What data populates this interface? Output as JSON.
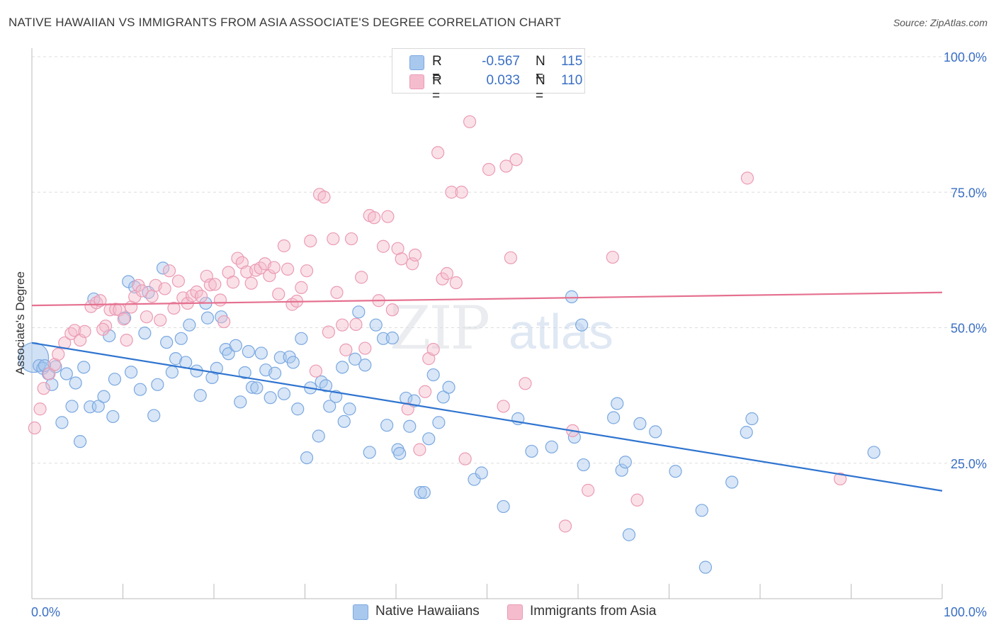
{
  "title": "NATIVE HAWAIIAN VS IMMIGRANTS FROM ASIA ASSOCIATE'S DEGREE CORRELATION CHART",
  "source": "Source: ZipAtlas.com",
  "legend": {
    "rows": [
      {
        "r_label": "R =",
        "r_value": "-0.567",
        "n_label": "N =",
        "n_value": "115"
      },
      {
        "r_label": "R =",
        "r_value": "0.033",
        "n_label": "N =",
        "n_value": "110"
      }
    ]
  },
  "bottom_legend": [
    "Native Hawaiians",
    "Immigrants from Asia"
  ],
  "watermark": "ZIPatlas",
  "colors": {
    "blue_fill": "#a9c8ee",
    "blue_stroke": "#7aa8e0",
    "blue_line": "#2f74d0",
    "pink_fill": "#f5bccd",
    "pink_stroke": "#eb9bb4",
    "pink_line": "#e5708f",
    "axis_label": "#3a6fc4",
    "grid": "#dddddd"
  },
  "chart_data": {
    "type": "scatter",
    "title": "NATIVE HAWAIIAN VS IMMIGRANTS FROM ASIA ASSOCIATE'S DEGREE CORRELATION CHART",
    "xlabel": "",
    "ylabel": "Associate's Degree",
    "xlim": [
      0,
      100
    ],
    "ylim": [
      0,
      100
    ],
    "x_tick_labels": [
      "0.0%",
      "100.0%"
    ],
    "y_tick_labels": [
      "25.0%",
      "50.0%",
      "75.0%",
      "100.0%"
    ],
    "y_ticks": [
      25,
      50,
      75,
      100
    ],
    "grid": true,
    "legend_position": "top-center",
    "series": [
      {
        "name": "Native Hawaiians",
        "r": -0.567,
        "n": 115,
        "trend": {
          "x": [
            0,
            100
          ],
          "y": [
            47.2,
            19.9
          ]
        },
        "points": [
          [
            0.2,
            44.5
          ],
          [
            0.8,
            43.0
          ],
          [
            1.2,
            42.5
          ],
          [
            1.8,
            41.5
          ],
          [
            2.2,
            39.5
          ],
          [
            2.6,
            42.8
          ],
          [
            3.3,
            32.5
          ],
          [
            3.8,
            41.5
          ],
          [
            4.4,
            35.5
          ],
          [
            4.8,
            39.8
          ],
          [
            5.3,
            29.0
          ],
          [
            5.7,
            42.7
          ],
          [
            6.4,
            35.4
          ],
          [
            6.8,
            55.3
          ],
          [
            7.3,
            35.5
          ],
          [
            7.9,
            37.3
          ],
          [
            8.5,
            48.5
          ],
          [
            8.9,
            33.6
          ],
          [
            9.1,
            40.5
          ],
          [
            10.2,
            51.8
          ],
          [
            10.6,
            58.5
          ],
          [
            10.9,
            41.8
          ],
          [
            11.3,
            57.5
          ],
          [
            11.9,
            38.6
          ],
          [
            12.4,
            49.0
          ],
          [
            12.8,
            56.5
          ],
          [
            13.4,
            33.8
          ],
          [
            13.8,
            39.5
          ],
          [
            14.4,
            61.0
          ],
          [
            14.8,
            47.3
          ],
          [
            15.4,
            41.8
          ],
          [
            15.8,
            44.3
          ],
          [
            16.4,
            48.0
          ],
          [
            16.9,
            43.6
          ],
          [
            17.3,
            50.5
          ],
          [
            18.1,
            42.0
          ],
          [
            18.5,
            37.5
          ],
          [
            19.1,
            54.5
          ],
          [
            19.3,
            51.8
          ],
          [
            19.8,
            40.8
          ],
          [
            20.3,
            42.5
          ],
          [
            20.8,
            52.0
          ],
          [
            21.3,
            46.0
          ],
          [
            21.6,
            45.2
          ],
          [
            22.4,
            46.7
          ],
          [
            22.9,
            36.3
          ],
          [
            23.4,
            41.7
          ],
          [
            23.8,
            45.6
          ],
          [
            24.2,
            39.0
          ],
          [
            24.7,
            38.9
          ],
          [
            25.2,
            45.3
          ],
          [
            25.7,
            42.2
          ],
          [
            26.2,
            37.1
          ],
          [
            26.7,
            41.6
          ],
          [
            27.3,
            44.5
          ],
          [
            27.7,
            37.8
          ],
          [
            28.3,
            44.6
          ],
          [
            28.7,
            43.6
          ],
          [
            29.2,
            35.0
          ],
          [
            29.6,
            48.0
          ],
          [
            30.2,
            26.0
          ],
          [
            30.6,
            38.9
          ],
          [
            31.5,
            30.0
          ],
          [
            31.8,
            40.0
          ],
          [
            32.3,
            39.3
          ],
          [
            32.7,
            35.5
          ],
          [
            33.4,
            37.3
          ],
          [
            34.1,
            42.7
          ],
          [
            34.3,
            32.7
          ],
          [
            34.9,
            35.0
          ],
          [
            35.5,
            44.2
          ],
          [
            35.9,
            52.9
          ],
          [
            36.6,
            43.1
          ],
          [
            37.1,
            27.0
          ],
          [
            37.8,
            50.5
          ],
          [
            38.6,
            48.0
          ],
          [
            39.0,
            32.0
          ],
          [
            39.6,
            48.1
          ],
          [
            40.2,
            27.5
          ],
          [
            40.4,
            26.8
          ],
          [
            41.1,
            37.0
          ],
          [
            41.5,
            31.8
          ],
          [
            42.0,
            36.5
          ],
          [
            42.7,
            19.6
          ],
          [
            43.1,
            19.6
          ],
          [
            43.6,
            29.5
          ],
          [
            44.1,
            41.3
          ],
          [
            44.7,
            32.5
          ],
          [
            45.2,
            37.2
          ],
          [
            45.8,
            39.0
          ],
          [
            48.6,
            22.0
          ],
          [
            49.4,
            23.2
          ],
          [
            51.8,
            17.0
          ],
          [
            53.4,
            33.2
          ],
          [
            54.9,
            27.2
          ],
          [
            57.1,
            28.0
          ],
          [
            59.3,
            55.7
          ],
          [
            59.6,
            29.8
          ],
          [
            60.4,
            50.5
          ],
          [
            60.6,
            24.7
          ],
          [
            63.9,
            33.4
          ],
          [
            64.3,
            36.0
          ],
          [
            64.8,
            23.7
          ],
          [
            65.2,
            25.2
          ],
          [
            65.6,
            11.8
          ],
          [
            66.8,
            32.3
          ],
          [
            68.5,
            30.8
          ],
          [
            70.7,
            23.5
          ],
          [
            73.6,
            16.3
          ],
          [
            74.0,
            5.8
          ],
          [
            76.9,
            21.5
          ],
          [
            78.5,
            30.7
          ],
          [
            79.1,
            33.2
          ],
          [
            92.5,
            27.0
          ],
          [
            1.4,
            43.0
          ]
        ]
      },
      {
        "name": "Immigrants from Asia",
        "r": 0.033,
        "n": 110,
        "trend": {
          "x": [
            0,
            100
          ],
          "y": [
            54.1,
            56.5
          ]
        },
        "points": [
          [
            0.3,
            31.5
          ],
          [
            0.9,
            35.0
          ],
          [
            1.3,
            38.8
          ],
          [
            1.9,
            41.5
          ],
          [
            2.5,
            43.2
          ],
          [
            2.9,
            45.1
          ],
          [
            3.6,
            47.2
          ],
          [
            4.3,
            48.9
          ],
          [
            4.7,
            49.5
          ],
          [
            5.3,
            47.7
          ],
          [
            5.8,
            49.3
          ],
          [
            6.5,
            53.9
          ],
          [
            7.1,
            54.6
          ],
          [
            7.5,
            55.0
          ],
          [
            8.1,
            50.3
          ],
          [
            8.6,
            53.3
          ],
          [
            9.2,
            53.4
          ],
          [
            9.6,
            53.3
          ],
          [
            10.1,
            51.6
          ],
          [
            10.4,
            47.7
          ],
          [
            10.9,
            53.8
          ],
          [
            11.3,
            55.7
          ],
          [
            11.7,
            57.8
          ],
          [
            12.1,
            56.8
          ],
          [
            12.6,
            52.0
          ],
          [
            13.2,
            55.8
          ],
          [
            13.6,
            57.8
          ],
          [
            14.1,
            51.4
          ],
          [
            14.6,
            57.2
          ],
          [
            15.1,
            60.5
          ],
          [
            15.6,
            53.6
          ],
          [
            16.1,
            58.6
          ],
          [
            16.6,
            55.5
          ],
          [
            17.1,
            54.5
          ],
          [
            17.6,
            55.9
          ],
          [
            18.1,
            56.6
          ],
          [
            18.6,
            55.8
          ],
          [
            19.2,
            59.5
          ],
          [
            19.6,
            57.9
          ],
          [
            20.1,
            58.0
          ],
          [
            20.7,
            55.1
          ],
          [
            21.1,
            51.1
          ],
          [
            21.6,
            60.2
          ],
          [
            22.1,
            58.4
          ],
          [
            22.6,
            62.8
          ],
          [
            23.1,
            62.0
          ],
          [
            23.6,
            60.3
          ],
          [
            24.1,
            58.2
          ],
          [
            24.6,
            60.6
          ],
          [
            25.1,
            61.0
          ],
          [
            25.6,
            61.8
          ],
          [
            26.1,
            59.6
          ],
          [
            26.6,
            61.1
          ],
          [
            27.1,
            56.2
          ],
          [
            27.7,
            65.1
          ],
          [
            28.1,
            60.8
          ],
          [
            28.6,
            54.3
          ],
          [
            29.1,
            54.9
          ],
          [
            29.6,
            57.4
          ],
          [
            30.2,
            60.5
          ],
          [
            30.6,
            66.0
          ],
          [
            31.2,
            42.0
          ],
          [
            31.6,
            74.6
          ],
          [
            32.1,
            74.1
          ],
          [
            32.6,
            49.2
          ],
          [
            33.1,
            66.4
          ],
          [
            33.5,
            56.5
          ],
          [
            34.1,
            50.5
          ],
          [
            34.5,
            45.9
          ],
          [
            35.1,
            66.4
          ],
          [
            35.6,
            50.6
          ],
          [
            36.2,
            59.3
          ],
          [
            36.6,
            46.2
          ],
          [
            37.1,
            70.7
          ],
          [
            37.6,
            70.3
          ],
          [
            38.1,
            55.0
          ],
          [
            38.6,
            65.0
          ],
          [
            39.1,
            70.5
          ],
          [
            39.6,
            53.3
          ],
          [
            40.2,
            64.6
          ],
          [
            40.6,
            62.7
          ],
          [
            41.3,
            35.0
          ],
          [
            41.8,
            61.8
          ],
          [
            42.1,
            63.4
          ],
          [
            42.6,
            27.5
          ],
          [
            43.2,
            38.2
          ],
          [
            43.6,
            44.3
          ],
          [
            44.1,
            46.0
          ],
          [
            44.6,
            82.3
          ],
          [
            45.1,
            59.0
          ],
          [
            45.6,
            60.0
          ],
          [
            46.1,
            75.0
          ],
          [
            46.6,
            58.3
          ],
          [
            47.2,
            75.0
          ],
          [
            47.6,
            25.8
          ],
          [
            48.1,
            88.0
          ],
          [
            50.2,
            79.2
          ],
          [
            51.8,
            35.5
          ],
          [
            52.1,
            79.8
          ],
          [
            52.6,
            62.9
          ],
          [
            53.2,
            81.0
          ],
          [
            54.2,
            39.7
          ],
          [
            58.6,
            13.4
          ],
          [
            59.4,
            31.0
          ],
          [
            61.1,
            20.0
          ],
          [
            63.8,
            63.0
          ],
          [
            66.5,
            18.2
          ],
          [
            78.6,
            77.6
          ],
          [
            88.8,
            22.1
          ],
          [
            7.8,
            49.7
          ]
        ]
      }
    ]
  }
}
